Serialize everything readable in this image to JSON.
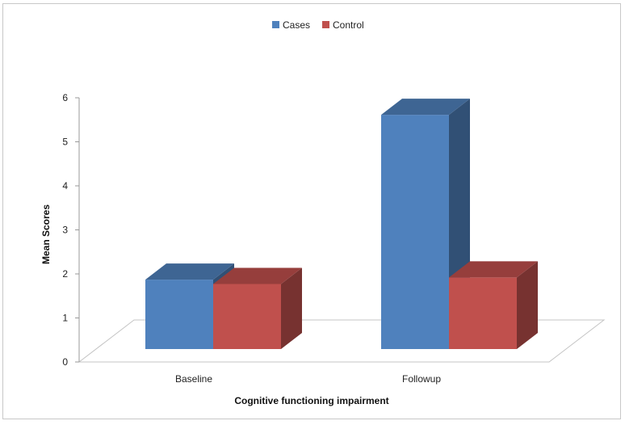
{
  "chart_data": {
    "type": "bar",
    "style": "3d-clustered-column",
    "categories": [
      "Baseline",
      "Followup"
    ],
    "series": [
      {
        "name": "Cases",
        "values": [
          1.6,
          5.4
        ],
        "color": "#4f81bd"
      },
      {
        "name": "Control",
        "values": [
          1.5,
          1.65
        ],
        "color": "#c0504d"
      }
    ],
    "title": "",
    "xlabel": "Cognitive functioning impairment",
    "ylabel": "Mean Scores",
    "ylim": [
      0,
      6
    ],
    "yticks": [
      "0",
      "1",
      "2",
      "3",
      "4",
      "5",
      "6"
    ],
    "grid": false,
    "legend_position": "top"
  }
}
